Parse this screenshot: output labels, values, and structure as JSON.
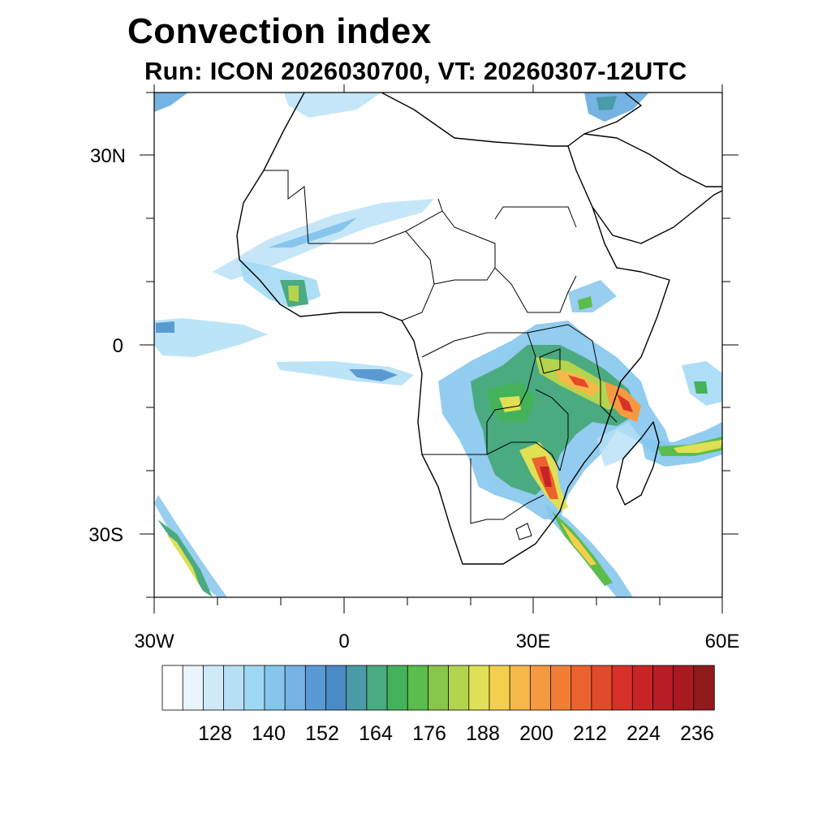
{
  "title": "Convection index",
  "subtitle": "Run: ICON 2026030700,  VT: 20260307-12UTC",
  "map": {
    "extent": {
      "lon_min": -30,
      "lon_max": 60,
      "lat_min": -40,
      "lat_max": 40
    },
    "lat_ticks": [
      {
        "value": 30,
        "label": "30N"
      },
      {
        "value": 0,
        "label": "0"
      },
      {
        "value": -30,
        "label": "30S"
      }
    ],
    "lon_ticks": [
      {
        "value": -30,
        "label": "30W"
      },
      {
        "value": 0,
        "label": "0"
      },
      {
        "value": 30,
        "label": "30E"
      },
      {
        "value": 60,
        "label": "60E"
      }
    ]
  },
  "colorbar": {
    "labels": [
      "128",
      "140",
      "152",
      "164",
      "176",
      "188",
      "200",
      "212",
      "224",
      "236"
    ],
    "colors": [
      "#ffffff",
      "#e8f5fc",
      "#cfe9f8",
      "#b7e0f6",
      "#9fd8f4",
      "#86c6ec",
      "#75b3e4",
      "#5a9ad4",
      "#4a8ac4",
      "#4a9aa8",
      "#4aaa80",
      "#43b25a",
      "#5bbd4c",
      "#86c64a",
      "#b4d44e",
      "#dfe054",
      "#f2d04e",
      "#f6b848",
      "#f59a40",
      "#f27e36",
      "#ec622e",
      "#e24a2a",
      "#d83228",
      "#c82426",
      "#b81c24",
      "#a81a20",
      "#901a1c"
    ]
  }
}
